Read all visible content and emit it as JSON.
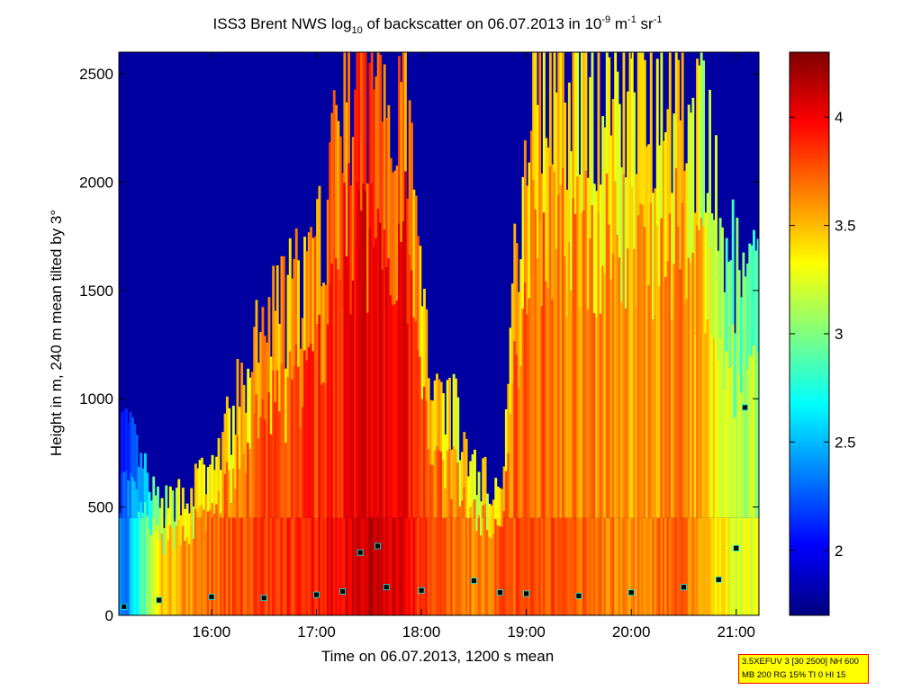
{
  "chart_data": {
    "type": "heatmap",
    "title": {
      "main": "ISS3 Brent NWS log",
      "sub": "10",
      "after": " of backscatter on 06.07.2013 in 10",
      "exp1": "-9",
      "mid": " m",
      "exp2": "-1",
      "mid2": " sr",
      "exp3": "-1"
    },
    "xlabel": "Time on 06.07.2013, 1200 s mean",
    "ylabel": "Height in m, 240 m mean tilted by 3°",
    "xlim": [
      "15:07",
      "21:13"
    ],
    "ylim": [
      0,
      2600
    ],
    "x_ticks": [
      "16:00",
      "17:00",
      "18:00",
      "19:00",
      "20:00",
      "21:00"
    ],
    "y_ticks": [
      "0",
      "500",
      "1000",
      "1500",
      "2000",
      "2500"
    ],
    "colorbar": {
      "range": [
        1.7,
        4.3
      ],
      "ticks": [
        "2",
        "2.5",
        "3",
        "3.5",
        "4"
      ],
      "colormap": "jet"
    },
    "background_profile_log10": [
      {
        "time": "15:10",
        "level": 2.2,
        "top_m": 900
      },
      {
        "time": "15:30",
        "level": 3.3,
        "top_m": 500
      },
      {
        "time": "16:00",
        "level": 3.6,
        "top_m": 700
      },
      {
        "time": "16:30",
        "level": 3.7,
        "top_m": 1400
      },
      {
        "time": "17:00",
        "level": 3.8,
        "top_m": 1700
      },
      {
        "time": "17:15",
        "level": 3.9,
        "top_m": 2600
      },
      {
        "time": "17:30",
        "level": 4.0,
        "top_m": 2600
      },
      {
        "time": "17:50",
        "level": 3.9,
        "top_m": 2600
      },
      {
        "time": "18:00",
        "level": 3.7,
        "top_m": 1400
      },
      {
        "time": "18:30",
        "level": 3.5,
        "top_m": 700
      },
      {
        "time": "18:45",
        "level": 3.6,
        "top_m": 600
      },
      {
        "time": "19:00",
        "level": 3.7,
        "top_m": 2600
      },
      {
        "time": "19:30",
        "level": 3.6,
        "top_m": 2600
      },
      {
        "time": "20:00",
        "level": 3.5,
        "top_m": 2600
      },
      {
        "time": "20:30",
        "level": 3.6,
        "top_m": 2600
      },
      {
        "time": "21:00",
        "level": 3.1,
        "top_m": 1600
      }
    ],
    "mixing_layer_height_m": [
      {
        "time": "15:10",
        "value": 40
      },
      {
        "time": "15:30",
        "value": 70
      },
      {
        "time": "16:00",
        "value": 85
      },
      {
        "time": "16:30",
        "value": 80
      },
      {
        "time": "17:00",
        "value": 95
      },
      {
        "time": "17:15",
        "value": 110
      },
      {
        "time": "17:25",
        "value": 290
      },
      {
        "time": "17:35",
        "value": 320
      },
      {
        "time": "17:40",
        "value": 130
      },
      {
        "time": "18:00",
        "value": 115
      },
      {
        "time": "18:30",
        "value": 160
      },
      {
        "time": "18:45",
        "value": 105
      },
      {
        "time": "19:00",
        "value": 100
      },
      {
        "time": "19:30",
        "value": 90
      },
      {
        "time": "20:00",
        "value": 105
      },
      {
        "time": "20:30",
        "value": 130
      },
      {
        "time": "20:50",
        "value": 165
      },
      {
        "time": "21:00",
        "value": 310
      },
      {
        "time": "21:05",
        "value": 960
      }
    ]
  },
  "note": {
    "line1": "3.5XEFUV 3 [30 2500] NH 600",
    "line2": "MB 200 RG 15% TI 0 HI 15"
  }
}
